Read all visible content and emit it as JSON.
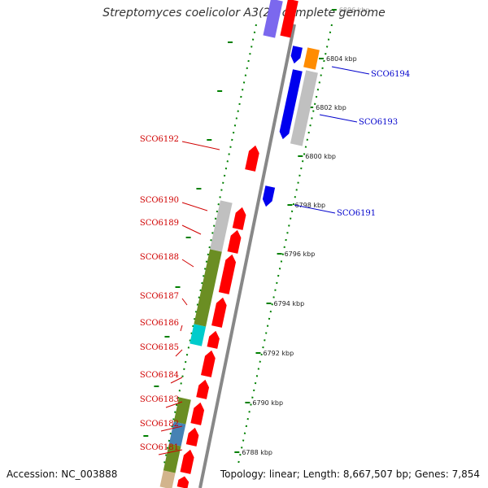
{
  "title": "Streptomyces coelicolor A3(2), complete genome",
  "footer": {
    "accession": "Accession: NC_003888",
    "topology": "Topology: linear; Length: 8,667,507 bp; Genes: 7,854"
  },
  "scale_ticks": [
    "6806 kbp",
    "6804 kbp",
    "6802 kbp",
    "6800 kbp",
    "6798 kbp",
    "6796 kbp",
    "6794 kbp",
    "6792 kbp",
    "6790 kbp",
    "6788 kbp"
  ],
  "genes_forward": [
    "SCO6192",
    "SCO6190",
    "SCO6189",
    "SCO6188",
    "SCO6187",
    "SCO6186",
    "SCO6185",
    "SCO6184",
    "SCO6183",
    "SCO6182",
    "SCO6181"
  ],
  "genes_reverse": [
    "SCO6194",
    "SCO6193",
    "SCO6191"
  ],
  "colors": {
    "forward_gene": "#ff0000",
    "reverse_gene": "#0000ee",
    "label_forward": "#d00000",
    "label_reverse": "#0000cc",
    "tick": "#008000",
    "backbone": "#888888",
    "cog_olive": "#6b8e23",
    "cog_grey": "#c0c0c0",
    "cog_cyan": "#00cccc",
    "cog_steelblue": "#4682b4",
    "cog_orange": "#ff8c00",
    "cog_purple": "#7b68ee",
    "cog_tan": "#d2b48c"
  }
}
